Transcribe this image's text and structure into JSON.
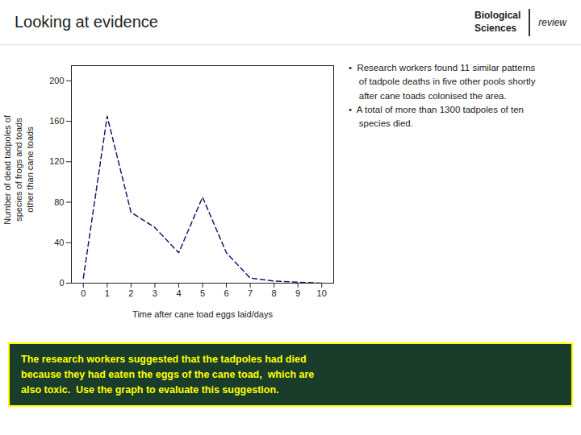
{
  "chart_data": {
    "type": "line",
    "title": "Looking at evidence",
    "xlabel": "Time after cane toad eggs laid/days",
    "ylabel": "Number of dead tadpoles of\nspecies of frogs and toads\nother than cane toads",
    "x": [
      0,
      1,
      2,
      3,
      4,
      5,
      6,
      7,
      8,
      9,
      10
    ],
    "values": [
      5,
      165,
      70,
      55,
      30,
      85,
      30,
      5,
      2,
      1,
      0
    ],
    "color": "#1a1a6e",
    "line_style": "dashed",
    "xlim": [
      -0.5,
      10.5
    ],
    "ylim": [
      0,
      215
    ],
    "xticks": [
      0,
      1,
      2,
      3,
      4,
      5,
      6,
      7,
      8,
      9,
      10
    ],
    "yticks": [
      0,
      40,
      80,
      120,
      160,
      200
    ],
    "grid": false,
    "annotations": [
      "•  Research workers found 11 similar patterns\n    of tadpole deaths in five other pools shortly\n    after cane toads colonised the area.\n•  A total of more than 1300 tadpoles of ten\n    species died.",
      "The research workers suggested that the tadpoles had died\nbecause they had eaten the eggs of the cane toad,  which are\nalso toxic.  Use the graph to evaluate this suggestion.",
      "Biological",
      "Sciences",
      "review"
    ]
  }
}
